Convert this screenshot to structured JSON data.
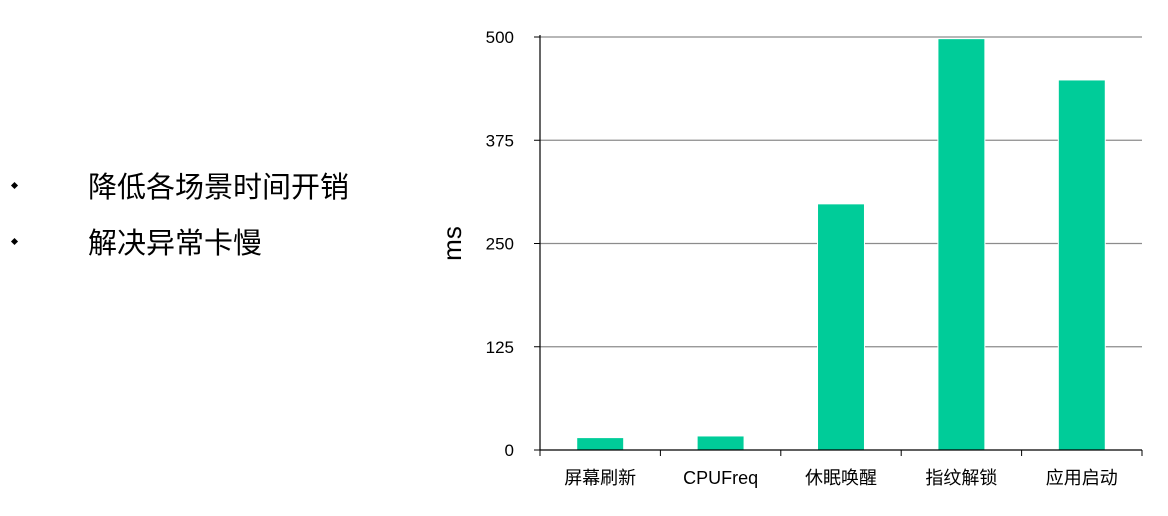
{
  "bullets": [
    {
      "text": "降低各场景时间开销"
    },
    {
      "text": "解决异常卡慢"
    }
  ],
  "colors": {
    "bar": "#00CC99",
    "grid": "#8C8C8C",
    "axis": "#000000",
    "text": "#000000"
  },
  "chart_data": {
    "type": "bar",
    "categories": [
      "屏幕刷新",
      "CPUFreq",
      "休眠唤醒",
      "指纹解锁",
      "应用启动"
    ],
    "values": [
      15,
      17,
      298,
      498,
      448
    ],
    "ylabel": "ms",
    "xlabel": "",
    "title": "",
    "ylim": [
      0,
      500
    ],
    "yticks": [
      0,
      125,
      250,
      375,
      500
    ],
    "grid": true,
    "legend": "none"
  }
}
